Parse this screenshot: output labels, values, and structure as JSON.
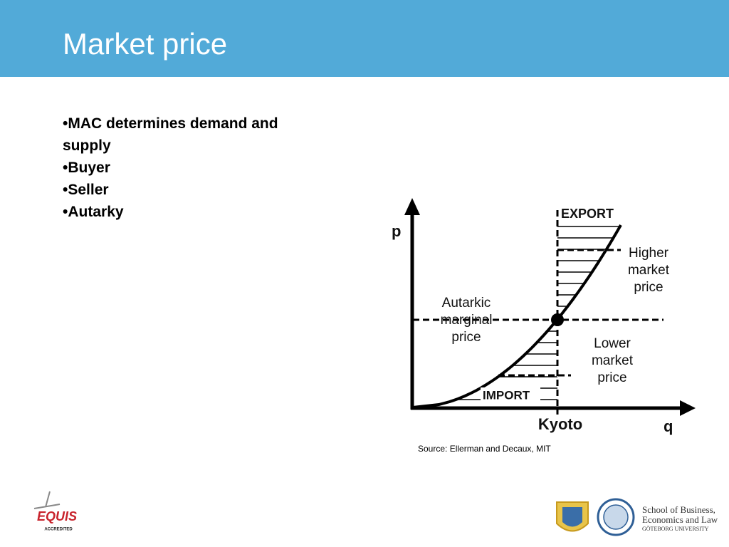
{
  "header": {
    "title": "Market price"
  },
  "bullets": [
    "•MAC determines demand and supply",
    "•Buyer",
    "•Seller",
    "•Autarky"
  ],
  "diagram": {
    "y_axis_label": "p",
    "x_axis_label": "q",
    "export_label": "EXPORT",
    "import_label": "IMPORT",
    "kyoto_label": "Kyoto",
    "higher_price": [
      "Higher",
      "market",
      "price"
    ],
    "autarkic_price": [
      "Autarkic",
      "marginal",
      "price"
    ],
    "lower_price": [
      "Lower",
      "market",
      "price"
    ]
  },
  "source": "Source: Ellerman and Decaux, MIT",
  "logos": {
    "equis": "EQUIS",
    "equis_sub": "ACCREDITED",
    "school": [
      "School of Business,",
      "Economics and Law",
      "GÖTEBORG UNIVERSITY"
    ]
  }
}
